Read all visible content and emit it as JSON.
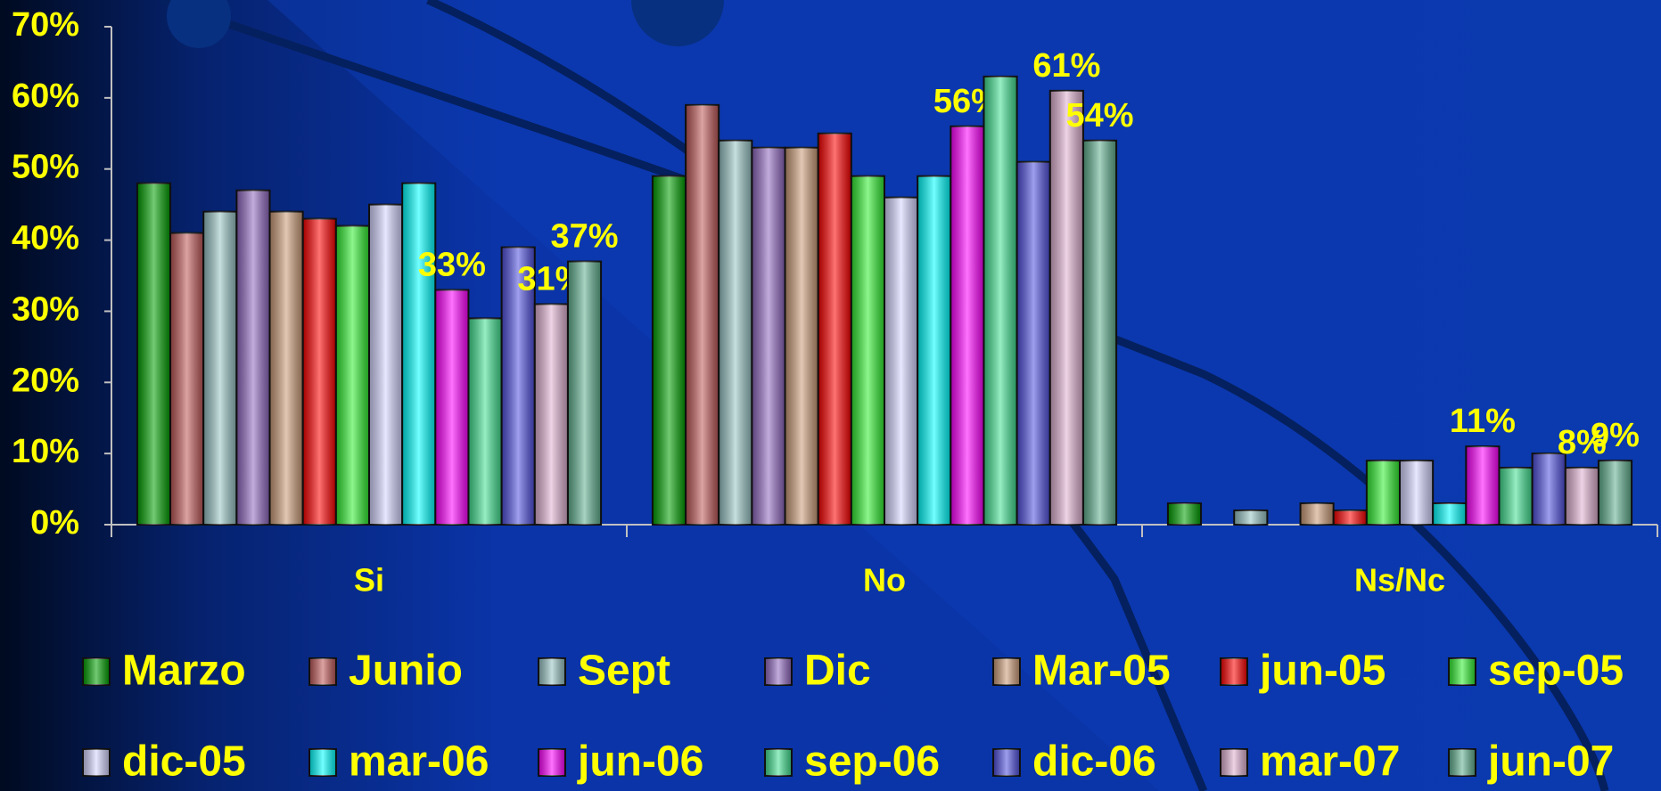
{
  "chart_data": {
    "type": "bar",
    "categories": [
      "Si",
      "No",
      "Ns/Nc"
    ],
    "ylim": [
      0,
      70
    ],
    "yticks": [
      {
        "value": 0,
        "label": "0%"
      },
      {
        "value": 10,
        "label": "10%"
      },
      {
        "value": 20,
        "label": "20%"
      },
      {
        "value": 30,
        "label": "30%"
      },
      {
        "value": 40,
        "label": "40%"
      },
      {
        "value": 50,
        "label": "50%"
      },
      {
        "value": 60,
        "label": "60%"
      },
      {
        "value": 70,
        "label": "70%"
      }
    ],
    "grid": false,
    "legend": "bottom",
    "series": [
      {
        "name": "Marzo",
        "color": "#00a000",
        "values": [
          48,
          49,
          3
        ]
      },
      {
        "name": "Junio",
        "color": "#c05858",
        "values": [
          41,
          59,
          0
        ]
      },
      {
        "name": "Sept",
        "color": "#98c4c4",
        "values": [
          44,
          54,
          2
        ]
      },
      {
        "name": "Dic",
        "color": "#9068c0",
        "values": [
          47,
          53,
          0
        ]
      },
      {
        "name": "Mar-05",
        "color": "#cc9c78",
        "values": [
          44,
          53,
          3
        ]
      },
      {
        "name": "jun-05",
        "color": "#ff0000",
        "values": [
          43,
          55,
          2
        ]
      },
      {
        "name": "sep-05",
        "color": "#30f030",
        "values": [
          42,
          49,
          9
        ]
      },
      {
        "name": "dic-05",
        "color": "#d4d4ff",
        "values": [
          45,
          46,
          9
        ]
      },
      {
        "name": "mar-06",
        "color": "#00ffff",
        "values": [
          48,
          49,
          3
        ]
      },
      {
        "name": "jun-06",
        "color": "#ff00ff",
        "values": [
          33,
          56,
          11
        ],
        "value_labels": [
          "33%",
          "56%",
          "11%"
        ]
      },
      {
        "name": "sep-06",
        "color": "#40e090",
        "values": [
          29,
          63,
          8
        ]
      },
      {
        "name": "dic-06",
        "color": "#5050e0",
        "values": [
          39,
          51,
          10
        ]
      },
      {
        "name": "mar-07",
        "color": "#e0b0d0",
        "values": [
          31,
          61,
          8
        ],
        "value_labels": [
          "31%",
          "61%",
          "8%"
        ]
      },
      {
        "name": "jun-07",
        "color": "#60b090",
        "values": [
          37,
          54,
          9
        ],
        "value_labels": [
          "37%",
          "54%",
          "9%"
        ]
      }
    ]
  }
}
